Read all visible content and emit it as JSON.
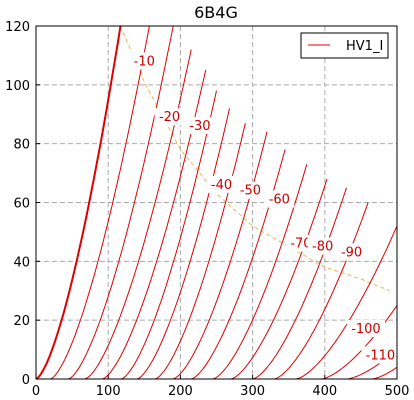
{
  "chart_data": {
    "type": "line",
    "title": "6B4G",
    "xlabel": "",
    "ylabel": "",
    "xlim": [
      0,
      500
    ],
    "ylim": [
      0,
      120
    ],
    "x_ticks": [
      0,
      100,
      200,
      300,
      400,
      500
    ],
    "y_ticks": [
      0,
      20,
      40,
      60,
      80,
      100,
      120
    ],
    "grid": "on (dashed gray)",
    "legend": {
      "position": "top-right",
      "entries": [
        "HV1_I"
      ]
    },
    "colors": {
      "curves": "#dd0000",
      "load_line": "#e8b84a",
      "grid": "#aaaaaa"
    },
    "series_exponent": 1.5,
    "grid_curves": [
      {
        "grid_voltage_label": "",
        "bold": true,
        "points": [
          [
            0,
            0
          ],
          [
            117,
            120
          ]
        ]
      },
      {
        "grid_voltage_label": "",
        "points": [
          [
            20,
            0
          ],
          [
            157,
            120
          ]
        ]
      },
      {
        "grid_voltage_label": "-10",
        "points": [
          [
            45,
            0
          ],
          [
            190,
            120
          ]
        ]
      },
      {
        "grid_voltage_label": "",
        "points": [
          [
            68,
            0
          ],
          [
            215,
            112
          ]
        ]
      },
      {
        "grid_voltage_label": "-20",
        "points": [
          [
            92,
            0
          ],
          [
            235,
            105
          ]
        ]
      },
      {
        "grid_voltage_label": "",
        "points": [
          [
            118,
            0
          ],
          [
            250,
            98
          ]
        ]
      },
      {
        "grid_voltage_label": "-30",
        "points": [
          [
            140,
            0
          ],
          [
            268,
            92
          ]
        ]
      },
      {
        "grid_voltage_label": "",
        "points": [
          [
            165,
            0
          ],
          [
            290,
            87
          ]
        ]
      },
      {
        "grid_voltage_label": "-40",
        "points": [
          [
            190,
            0
          ],
          [
            320,
            84
          ]
        ]
      },
      {
        "grid_voltage_label": "",
        "points": [
          [
            215,
            0
          ],
          [
            345,
            78
          ]
        ]
      },
      {
        "grid_voltage_label": "-50",
        "points": [
          [
            245,
            0
          ],
          [
            375,
            73
          ]
        ]
      },
      {
        "grid_voltage_label": "-60",
        "points": [
          [
            270,
            0
          ],
          [
            403,
            68
          ]
        ]
      },
      {
        "grid_voltage_label": "-70",
        "points": [
          [
            300,
            0
          ],
          [
            430,
            65
          ]
        ]
      },
      {
        "grid_voltage_label": "-80",
        "points": [
          [
            330,
            0
          ],
          [
            460,
            60
          ]
        ]
      },
      {
        "grid_voltage_label": "-90",
        "points": [
          [
            360,
            0
          ],
          [
            500,
            52
          ]
        ]
      },
      {
        "grid_voltage_label": "",
        "points": [
          [
            395,
            0
          ],
          [
            500,
            25
          ]
        ]
      },
      {
        "grid_voltage_label": "-100",
        "points": [
          [
            430,
            0
          ],
          [
            500,
            10
          ]
        ]
      },
      {
        "grid_voltage_label": "-110",
        "points": [
          [
            465,
            0
          ],
          [
            500,
            4
          ]
        ]
      }
    ],
    "curve_labels": [
      {
        "text": "-10",
        "x": 150,
        "y": 108
      },
      {
        "text": "-20",
        "x": 185,
        "y": 89
      },
      {
        "text": "-30",
        "x": 227,
        "y": 86
      },
      {
        "text": "-40",
        "x": 257,
        "y": 66
      },
      {
        "text": "-50",
        "x": 297,
        "y": 64
      },
      {
        "text": "-60",
        "x": 337,
        "y": 61
      },
      {
        "text": "-70",
        "x": 367,
        "y": 46
      },
      {
        "text": "-80",
        "x": 397,
        "y": 45
      },
      {
        "text": "-90",
        "x": 437,
        "y": 43
      },
      {
        "text": "-100",
        "x": 457,
        "y": 17
      },
      {
        "text": "-110",
        "x": 477,
        "y": 8
      }
    ],
    "load_line": {
      "points": [
        [
          117,
          120
        ],
        [
          150,
          101
        ],
        [
          200,
          78
        ],
        [
          250,
          63
        ],
        [
          300,
          52
        ],
        [
          350,
          45
        ],
        [
          400,
          38
        ],
        [
          450,
          34
        ],
        [
          490,
          30
        ]
      ]
    }
  }
}
